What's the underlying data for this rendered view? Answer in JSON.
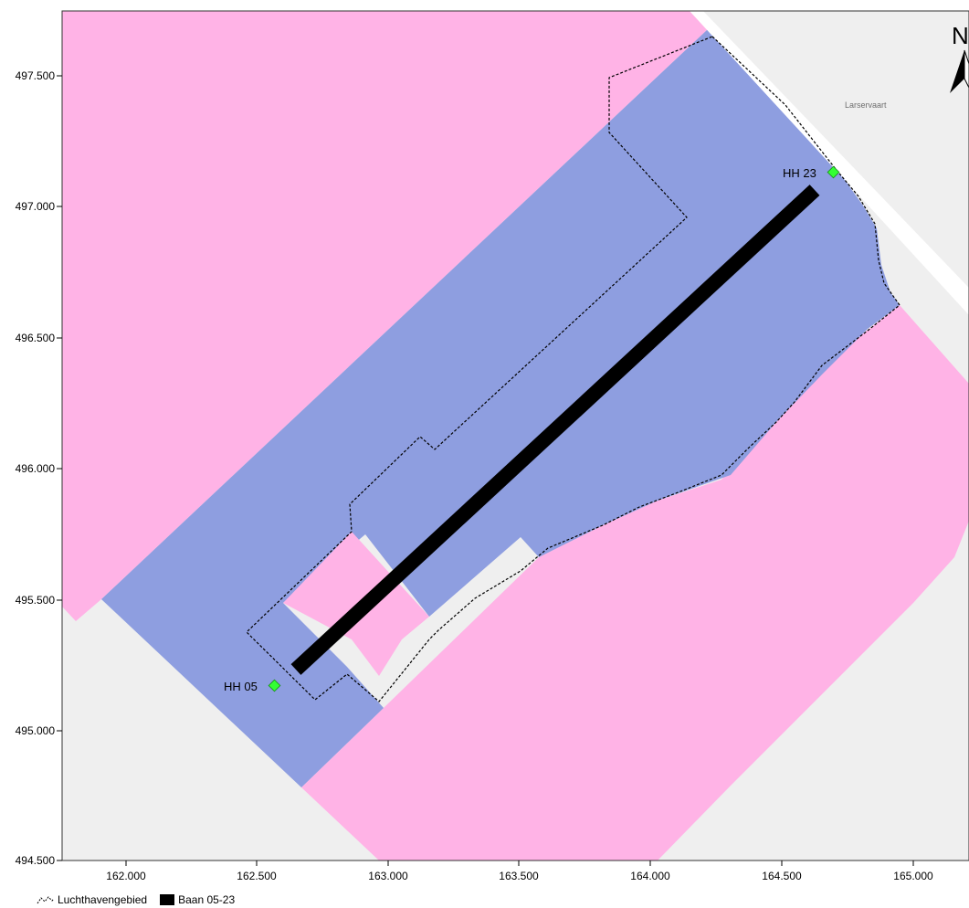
{
  "axes": {
    "y_ticks": [
      "497.500",
      "497.000",
      "496.500",
      "496.000",
      "495.500",
      "495.000",
      "494.500"
    ],
    "x_ticks": [
      "162.000",
      "162.500",
      "163.000",
      "163.500",
      "164.000",
      "164.500",
      "165.000"
    ]
  },
  "labels": {
    "waterway": "Larservaart",
    "threshold_ne": "HH 23",
    "threshold_sw": "HH 05",
    "north": "N"
  },
  "legend": [
    {
      "label": "Luchthavengebied",
      "symbol": "dashed-line-icon"
    },
    {
      "label": "Baan 05-23",
      "symbol": "black-box-icon"
    }
  ],
  "colors": {
    "zone_pink": "#ffb3e6",
    "zone_blue": "#8e9ee0",
    "background_gray": "#efefef",
    "runway": "#000000",
    "threshold_marker": "#33ff33",
    "waterway": "#ffffff"
  }
}
